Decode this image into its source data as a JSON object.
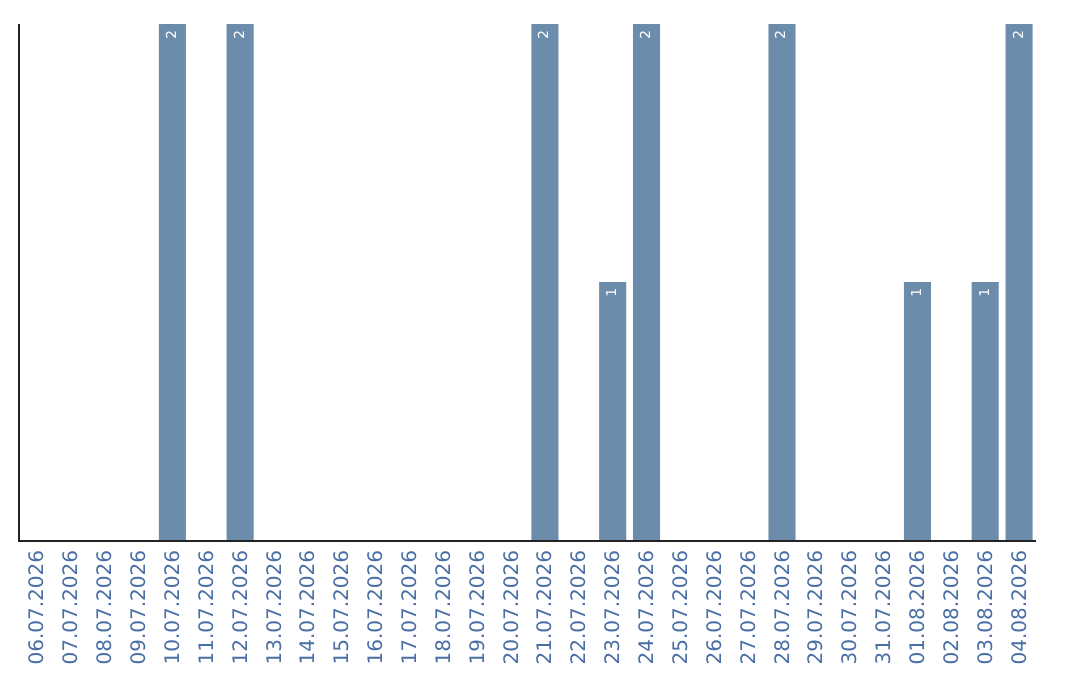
{
  "chart_data": {
    "type": "bar",
    "categories": [
      "06.07.2026",
      "07.07.2026",
      "08.07.2026",
      "09.07.2026",
      "10.07.2026",
      "11.07.2026",
      "12.07.2026",
      "13.07.2026",
      "14.07.2026",
      "15.07.2026",
      "16.07.2026",
      "17.07.2026",
      "18.07.2026",
      "19.07.2026",
      "20.07.2026",
      "21.07.2026",
      "22.07.2026",
      "23.07.2026",
      "24.07.2026",
      "25.07.2026",
      "26.07.2026",
      "27.07.2026",
      "28.07.2026",
      "29.07.2026",
      "30.07.2026",
      "31.07.2026",
      "01.08.2026",
      "02.08.2026",
      "03.08.2026",
      "04.08.2026"
    ],
    "values": [
      0,
      0,
      0,
      0,
      2,
      0,
      2,
      0,
      0,
      0,
      0,
      0,
      0,
      0,
      0,
      2,
      0,
      1,
      2,
      0,
      0,
      0,
      2,
      0,
      0,
      0,
      1,
      0,
      1,
      2
    ],
    "value_labels": [
      null,
      null,
      null,
      null,
      "2",
      null,
      "2",
      null,
      null,
      null,
      null,
      null,
      null,
      null,
      null,
      "2",
      null,
      "1",
      "2",
      null,
      null,
      null,
      "2",
      null,
      null,
      null,
      "1",
      null,
      "1",
      "2"
    ],
    "color": "#6b8caa",
    "ylim": [
      0,
      2
    ],
    "tick_labels": "x"
  }
}
